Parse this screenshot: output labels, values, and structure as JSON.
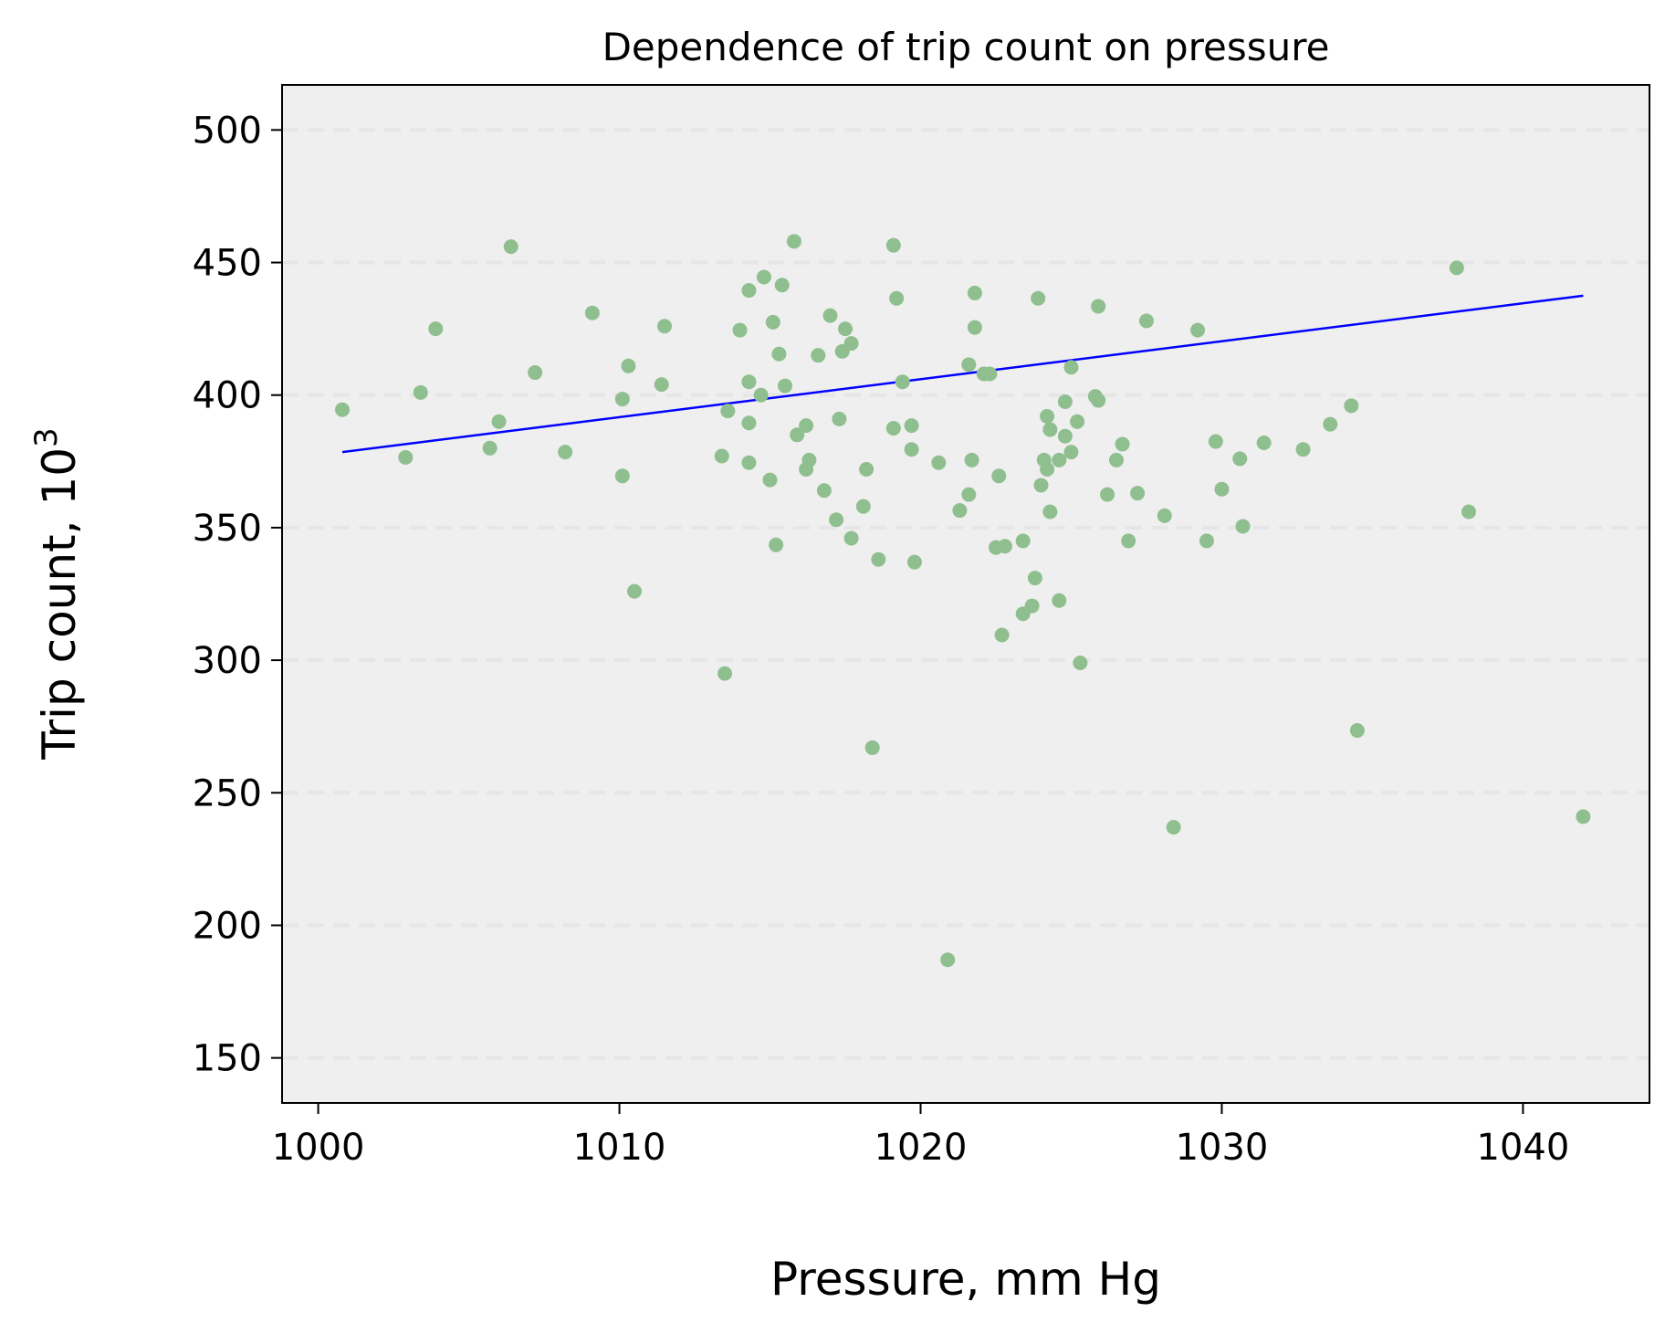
{
  "chart_data": {
    "type": "scatter",
    "title": "Dependence of trip count on pressure",
    "xlabel": "Pressure, mm Hg",
    "ylabel": "Trip count, 10",
    "ylabel_superscript": "3",
    "xlim": [
      998.8,
      1044.2
    ],
    "ylim": [
      133,
      517
    ],
    "xticks": [
      1000,
      1010,
      1020,
      1030,
      1040
    ],
    "yticks": [
      150,
      200,
      250,
      300,
      350,
      400,
      450,
      500
    ],
    "grid": "y-dashed",
    "colors": {
      "points": "#8fbf8f",
      "trend": "#0000ff",
      "grid": "#e6e6e6",
      "plot_bg": "#efefef"
    },
    "trend_line": {
      "x": [
        1000.8,
        1042.0
      ],
      "y": [
        378.5,
        437.5
      ]
    },
    "points": [
      {
        "x": 1000.8,
        "y": 394.5
      },
      {
        "x": 1002.9,
        "y": 376.5
      },
      {
        "x": 1003.4,
        "y": 401
      },
      {
        "x": 1003.9,
        "y": 425
      },
      {
        "x": 1005.7,
        "y": 380
      },
      {
        "x": 1006.0,
        "y": 390
      },
      {
        "x": 1006.4,
        "y": 456
      },
      {
        "x": 1007.2,
        "y": 408.5
      },
      {
        "x": 1008.2,
        "y": 378.5
      },
      {
        "x": 1009.1,
        "y": 431
      },
      {
        "x": 1010.1,
        "y": 398.5
      },
      {
        "x": 1010.1,
        "y": 369.5
      },
      {
        "x": 1010.3,
        "y": 411
      },
      {
        "x": 1010.5,
        "y": 326
      },
      {
        "x": 1011.4,
        "y": 404
      },
      {
        "x": 1011.5,
        "y": 426
      },
      {
        "x": 1013.4,
        "y": 377
      },
      {
        "x": 1013.5,
        "y": 295
      },
      {
        "x": 1013.6,
        "y": 394
      },
      {
        "x": 1014.0,
        "y": 424.5
      },
      {
        "x": 1014.3,
        "y": 439.5
      },
      {
        "x": 1014.3,
        "y": 405
      },
      {
        "x": 1014.3,
        "y": 389.5
      },
      {
        "x": 1014.3,
        "y": 374.5
      },
      {
        "x": 1014.7,
        "y": 400
      },
      {
        "x": 1014.8,
        "y": 444.5
      },
      {
        "x": 1015.0,
        "y": 368
      },
      {
        "x": 1015.1,
        "y": 427.5
      },
      {
        "x": 1015.2,
        "y": 343.5
      },
      {
        "x": 1015.3,
        "y": 415.5
      },
      {
        "x": 1015.4,
        "y": 441.5
      },
      {
        "x": 1015.5,
        "y": 403.5
      },
      {
        "x": 1015.8,
        "y": 458
      },
      {
        "x": 1015.9,
        "y": 385
      },
      {
        "x": 1016.2,
        "y": 388.5
      },
      {
        "x": 1016.2,
        "y": 372
      },
      {
        "x": 1016.3,
        "y": 375.5
      },
      {
        "x": 1016.6,
        "y": 415
      },
      {
        "x": 1016.8,
        "y": 364
      },
      {
        "x": 1017.0,
        "y": 430
      },
      {
        "x": 1017.2,
        "y": 353
      },
      {
        "x": 1017.3,
        "y": 391
      },
      {
        "x": 1017.4,
        "y": 416.5
      },
      {
        "x": 1017.5,
        "y": 425
      },
      {
        "x": 1017.7,
        "y": 419.5
      },
      {
        "x": 1017.7,
        "y": 346
      },
      {
        "x": 1018.1,
        "y": 358
      },
      {
        "x": 1018.2,
        "y": 372
      },
      {
        "x": 1018.4,
        "y": 267
      },
      {
        "x": 1018.6,
        "y": 338
      },
      {
        "x": 1019.1,
        "y": 456.5
      },
      {
        "x": 1019.1,
        "y": 387.5
      },
      {
        "x": 1019.2,
        "y": 436.5
      },
      {
        "x": 1019.4,
        "y": 405
      },
      {
        "x": 1019.7,
        "y": 388.5
      },
      {
        "x": 1019.7,
        "y": 379.5
      },
      {
        "x": 1019.8,
        "y": 337
      },
      {
        "x": 1020.6,
        "y": 374.5
      },
      {
        "x": 1020.9,
        "y": 187
      },
      {
        "x": 1021.3,
        "y": 356.5
      },
      {
        "x": 1021.6,
        "y": 411.5
      },
      {
        "x": 1021.6,
        "y": 362.5
      },
      {
        "x": 1021.7,
        "y": 375.5
      },
      {
        "x": 1021.8,
        "y": 438.5
      },
      {
        "x": 1021.8,
        "y": 425.5
      },
      {
        "x": 1022.1,
        "y": 408
      },
      {
        "x": 1022.3,
        "y": 408
      },
      {
        "x": 1022.5,
        "y": 342.5
      },
      {
        "x": 1022.6,
        "y": 369.5
      },
      {
        "x": 1022.7,
        "y": 309.5
      },
      {
        "x": 1022.8,
        "y": 343
      },
      {
        "x": 1023.4,
        "y": 345
      },
      {
        "x": 1023.4,
        "y": 317.5
      },
      {
        "x": 1023.7,
        "y": 320.5
      },
      {
        "x": 1023.8,
        "y": 331
      },
      {
        "x": 1023.9,
        "y": 436.5
      },
      {
        "x": 1024.0,
        "y": 366
      },
      {
        "x": 1024.1,
        "y": 375.5
      },
      {
        "x": 1024.2,
        "y": 392
      },
      {
        "x": 1024.2,
        "y": 372
      },
      {
        "x": 1024.3,
        "y": 356
      },
      {
        "x": 1024.3,
        "y": 387
      },
      {
        "x": 1024.6,
        "y": 375.5
      },
      {
        "x": 1024.6,
        "y": 322.5
      },
      {
        "x": 1024.8,
        "y": 384.5
      },
      {
        "x": 1024.8,
        "y": 397.5
      },
      {
        "x": 1025.0,
        "y": 410.5
      },
      {
        "x": 1025.0,
        "y": 378.5
      },
      {
        "x": 1025.2,
        "y": 390
      },
      {
        "x": 1025.3,
        "y": 299
      },
      {
        "x": 1025.8,
        "y": 399.5
      },
      {
        "x": 1025.9,
        "y": 433.5
      },
      {
        "x": 1025.9,
        "y": 398
      },
      {
        "x": 1026.2,
        "y": 362.5
      },
      {
        "x": 1026.5,
        "y": 375.5
      },
      {
        "x": 1026.7,
        "y": 381.5
      },
      {
        "x": 1026.9,
        "y": 345
      },
      {
        "x": 1027.2,
        "y": 363
      },
      {
        "x": 1027.5,
        "y": 428
      },
      {
        "x": 1028.1,
        "y": 354.5
      },
      {
        "x": 1028.4,
        "y": 237
      },
      {
        "x": 1029.2,
        "y": 424.5
      },
      {
        "x": 1029.5,
        "y": 345
      },
      {
        "x": 1029.8,
        "y": 382.5
      },
      {
        "x": 1030.0,
        "y": 364.5
      },
      {
        "x": 1030.6,
        "y": 376
      },
      {
        "x": 1030.7,
        "y": 350.5
      },
      {
        "x": 1031.4,
        "y": 382
      },
      {
        "x": 1032.7,
        "y": 379.5
      },
      {
        "x": 1033.6,
        "y": 389
      },
      {
        "x": 1034.3,
        "y": 396
      },
      {
        "x": 1034.5,
        "y": 273.5
      },
      {
        "x": 1037.8,
        "y": 448
      },
      {
        "x": 1038.2,
        "y": 356
      },
      {
        "x": 1042.0,
        "y": 241
      }
    ]
  }
}
